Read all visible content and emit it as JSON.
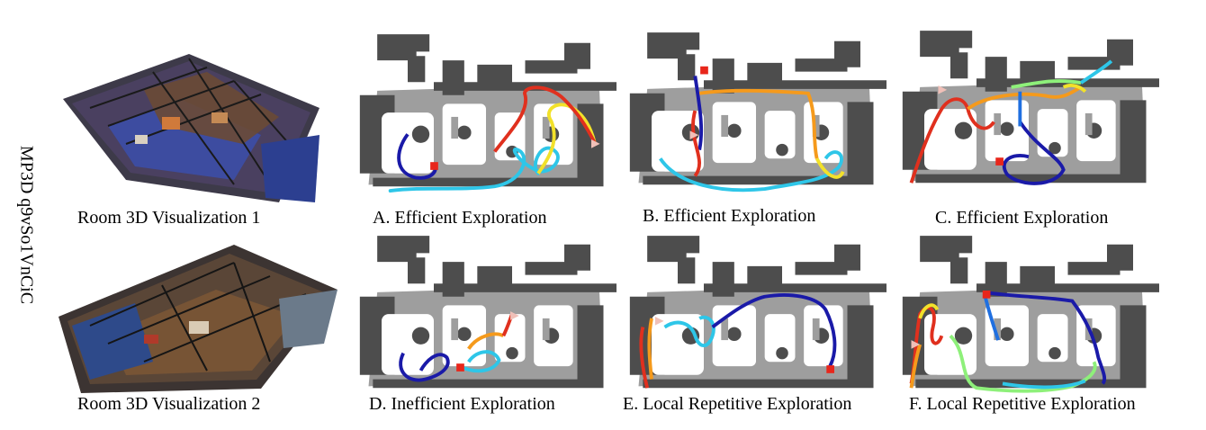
{
  "side_label": "MP3D q9vSo1VnCiC",
  "renders": [
    {
      "caption": "Room 3D Visualization 1"
    },
    {
      "caption": "Room 3D Visualization 2"
    }
  ],
  "panels": [
    {
      "caption": "A.  Efficient Exploration"
    },
    {
      "caption": "B.  Efficient Exploration"
    },
    {
      "caption": "C.  Efficient Exploration"
    },
    {
      "caption": "D.  Inefficient Exploration"
    },
    {
      "caption": "E.  Local Repetitive Exploration"
    },
    {
      "caption": "F.  Local Repetitive Exploration"
    }
  ],
  "colors": {
    "wall": "#4d4d4d",
    "corridor": "#9e9e9e",
    "free": "#ffffff",
    "goal_marker": "#e8261b",
    "trajectory_gradient": [
      "#1a1aa8",
      "#1f6fe0",
      "#2ec6e8",
      "#8ef07a",
      "#f2e12a",
      "#f59a1c",
      "#e0301e"
    ]
  }
}
